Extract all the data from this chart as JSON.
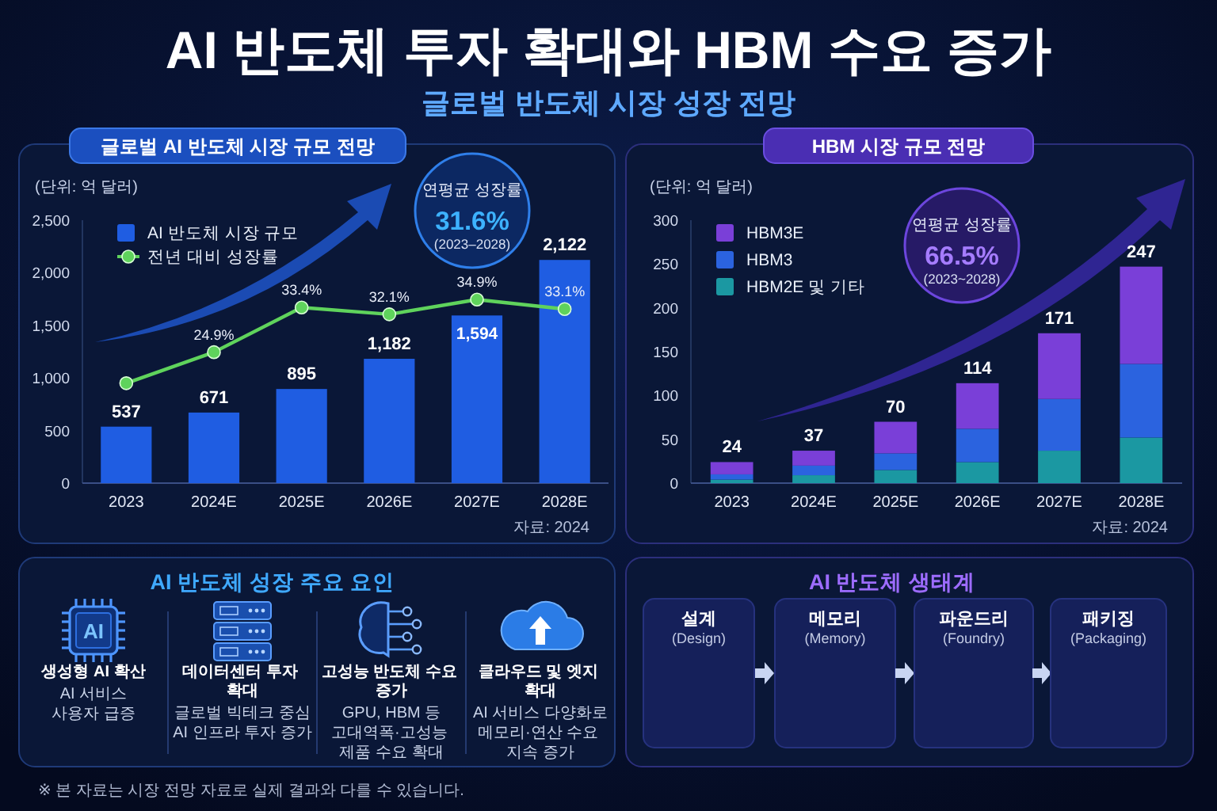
{
  "chart_data": [
    {
      "type": "other",
      "title": "AI 반도체 투자 확대와 HBM 수요 증가",
      "subtitle": "글로벌 반도체 시장 성장 전망"
    },
    {
      "type": "bar",
      "title": "글로벌 AI 반도체 시장 규모 전망",
      "ylabel": "(단위: 억 달러)",
      "categories": [
        "2023",
        "2024E",
        "2025E",
        "2026E",
        "2027E",
        "2028E"
      ],
      "series": [
        {
          "name": "AI 반도체 시장 규모",
          "color": "#1f5de2",
          "values": [
            537,
            671,
            895,
            1182,
            1594,
            2122
          ],
          "value_labels": [
            "537",
            "671",
            "895",
            "1,182",
            "1,594",
            "2,122"
          ]
        },
        {
          "name": "전년 대비 성장률",
          "type": "line",
          "axis": "y2",
          "color": "#5fd35c",
          "values": [
            19,
            24.9,
            33.4,
            32.1,
            34.9,
            33.1
          ],
          "value_labels": [
            null,
            "24.9%",
            "33.4%",
            "32.1%",
            "34.9%",
            "33.1%"
          ]
        }
      ],
      "ylim": [
        0,
        2500
      ],
      "yticks": [
        0,
        500,
        {
          "value": 1000,
          "label": "1,000"
        },
        {
          "value": 1500,
          "label": "1,500"
        },
        {
          "value": 2000,
          "label": "2,000"
        },
        {
          "value": 2500,
          "label": "2,500"
        }
      ],
      "y2lim": [
        0,
        50
      ],
      "marker": "circle",
      "legend": "top left",
      "annotations": [
        "연평균 성장률",
        "31.6%",
        "(2023–2028)",
        "자료: 2024"
      ]
    },
    {
      "type": "bar",
      "title": "HBM 시장 규모 전망",
      "ylabel": "(단위: 억 달러)",
      "stacked": true,
      "categories": [
        "2023",
        "2024E",
        "2025E",
        "2026E",
        "2027E",
        "2028E"
      ],
      "series": [
        {
          "name": "HBM2E 및 기타",
          "color": "#1b98a2",
          "values": [
            4,
            9,
            15,
            24,
            37,
            52
          ]
        },
        {
          "name": "HBM3",
          "color": "#2b63df",
          "values": [
            6,
            11,
            19,
            38,
            59,
            84
          ]
        },
        {
          "name": "HBM3E",
          "color": "#7a3fd8",
          "values": [
            14,
            17,
            36,
            52,
            75,
            111
          ]
        }
      ],
      "totals": [
        "24",
        "37",
        "70",
        "114",
        "171",
        "247"
      ],
      "ylim": [
        0,
        300
      ],
      "yticks": [
        0,
        50,
        100,
        150,
        200,
        250,
        300
      ],
      "legend": "top left",
      "annotations": [
        "연평균 성장률",
        "66.5%",
        "(2023~2028)",
        "자료: 2024"
      ]
    },
    {
      "type": "other",
      "title": "AI 반도체 성장 주요 요인",
      "annotations": [
        "생성형 AI 확산",
        "AI 서비스",
        "사용자 급증",
        "데이터센터 투자 확대",
        "글로벌 빅테크 중심",
        "AI 인프라 투자 증가",
        "고성능 반도체 수요 증가",
        "GPU, HBM 등",
        "고대역폭·고성능 제품 수요 확대",
        "클라우드 및 엣지 확대",
        "AI 서비스 다양화로",
        "메모리·연산 수요 지속 증가",
        "AI"
      ]
    },
    {
      "type": "other",
      "title": "AI 반도체 생태계",
      "annotations": [
        "설계",
        "(Design)",
        "메모리",
        "(Memory)",
        "파운드리",
        "(Foundry)",
        "패키징",
        "(Packaging)"
      ]
    },
    {
      "type": "other",
      "annotations": [
        "※ 본 자료는 시장 전망 자료로 실제 결과와 다를 수 있습니다."
      ]
    }
  ]
}
